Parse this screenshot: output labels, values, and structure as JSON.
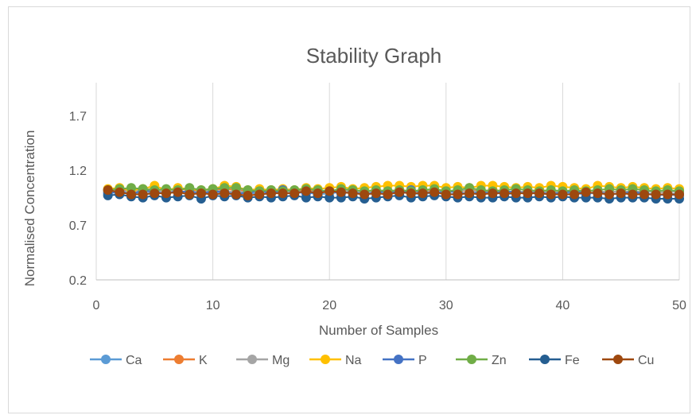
{
  "chart_data": {
    "type": "line",
    "title": "Stability Graph",
    "xlabel": "Number of Samples",
    "ylabel": "Normalised Concentration",
    "xlim": [
      0,
      50
    ],
    "ylim": [
      0.2,
      2.0
    ],
    "x_ticks": [
      "0",
      "10",
      "20",
      "30",
      "40",
      "50"
    ],
    "y_ticks": [
      "0.2",
      "0.7",
      "1.2",
      "1.7"
    ],
    "grid": "vertical",
    "legend": "bottom",
    "x": [
      1,
      2,
      3,
      4,
      5,
      6,
      7,
      8,
      9,
      10,
      11,
      12,
      13,
      14,
      15,
      16,
      17,
      18,
      19,
      20,
      21,
      22,
      23,
      24,
      25,
      26,
      27,
      28,
      29,
      30,
      31,
      32,
      33,
      34,
      35,
      36,
      37,
      38,
      39,
      40,
      41,
      42,
      43,
      44,
      45,
      46,
      47,
      48,
      49,
      50
    ],
    "series": [
      {
        "name": "Ca",
        "color": "#5B9BD5",
        "values": [
          1.0,
          0.99,
          1.0,
          0.98,
          1.0,
          0.99,
          1.01,
          1.0,
          0.98,
          1.0,
          1.0,
          0.99,
          1.0,
          0.98,
          0.99,
          1.0,
          0.99,
          1.0,
          0.98,
          0.99,
          1.0,
          1.0,
          0.98,
          0.99,
          1.0,
          1.0,
          0.99,
          0.98,
          1.0,
          0.99,
          0.98,
          1.0,
          0.99,
          1.0,
          0.98,
          0.99,
          1.0,
          0.98,
          0.99,
          1.0,
          0.99,
          0.98,
          1.0,
          0.99,
          0.98,
          1.0,
          0.99,
          0.98,
          0.98,
          0.99
        ]
      },
      {
        "name": "K",
        "color": "#ED7D31",
        "values": [
          1.02,
          1.03,
          1.01,
          1.02,
          1.03,
          1.01,
          1.03,
          1.02,
          1.01,
          1.02,
          1.03,
          1.02,
          1.01,
          1.0,
          1.01,
          1.02,
          1.01,
          1.02,
          1.01,
          1.0,
          1.02,
          1.01,
          1.0,
          1.02,
          1.01,
          1.02,
          1.01,
          1.0,
          1.02,
          1.01,
          1.0,
          1.02,
          1.01,
          1.02,
          1.01,
          1.0,
          1.01,
          1.02,
          1.01,
          1.0,
          1.01,
          1.02,
          1.01,
          1.0,
          1.01,
          1.0,
          1.01,
          1.0,
          1.0,
          1.01
        ]
      },
      {
        "name": "Mg",
        "color": "#A5A5A5",
        "values": [
          1.01,
          1.0,
          1.02,
          1.01,
          1.0,
          1.02,
          1.01,
          1.0,
          1.01,
          1.02,
          1.0,
          1.01,
          1.0,
          1.01,
          1.02,
          1.0,
          1.01,
          1.0,
          1.01,
          1.0,
          1.02,
          1.01,
          1.0,
          1.01,
          1.0,
          1.02,
          1.01,
          1.0,
          1.01,
          1.0,
          1.01,
          1.02,
          1.0,
          1.01,
          1.0,
          1.01,
          1.0,
          1.01,
          1.0,
          1.01,
          1.0,
          1.02,
          1.01,
          1.0,
          1.01,
          1.0,
          1.01,
          1.0,
          1.0,
          1.01
        ]
      },
      {
        "name": "Na",
        "color": "#FFC000",
        "values": [
          1.03,
          1.04,
          1.02,
          1.03,
          1.06,
          1.02,
          1.04,
          1.03,
          1.02,
          1.03,
          1.06,
          1.05,
          1.02,
          1.03,
          1.02,
          1.03,
          1.02,
          1.04,
          1.03,
          1.04,
          1.05,
          1.03,
          1.04,
          1.05,
          1.06,
          1.06,
          1.05,
          1.06,
          1.06,
          1.04,
          1.05,
          1.04,
          1.06,
          1.06,
          1.05,
          1.04,
          1.05,
          1.04,
          1.06,
          1.05,
          1.04,
          1.03,
          1.06,
          1.05,
          1.04,
          1.05,
          1.04,
          1.03,
          1.04,
          1.03
        ]
      },
      {
        "name": "P",
        "color": "#4472C4",
        "values": [
          0.99,
          1.01,
          0.98,
          1.02,
          1.0,
          0.99,
          1.01,
          1.0,
          0.99,
          1.01,
          1.0,
          0.98,
          1.0,
          1.01,
          0.99,
          1.02,
          1.01,
          0.99,
          1.0,
          1.01,
          0.99,
          1.0,
          0.98,
          1.0,
          1.01,
          0.99,
          1.02,
          1.0,
          0.99,
          1.01,
          1.0,
          0.98,
          1.0,
          0.99,
          1.01,
          1.0,
          0.99,
          1.0,
          0.98,
          1.0,
          1.01,
          0.99,
          1.0,
          0.98,
          0.99,
          1.0,
          0.99,
          0.97,
          0.98,
          0.97
        ]
      },
      {
        "name": "Zn",
        "color": "#70AD47",
        "values": [
          1.02,
          1.03,
          1.04,
          1.03,
          1.02,
          1.03,
          1.02,
          1.04,
          1.02,
          1.03,
          1.04,
          1.04,
          1.02,
          1.01,
          1.02,
          1.01,
          1.02,
          1.03,
          1.02,
          1.01,
          1.03,
          1.02,
          1.01,
          1.02,
          1.01,
          1.02,
          1.01,
          1.02,
          1.03,
          1.01,
          1.02,
          1.04,
          1.02,
          1.01,
          1.02,
          1.03,
          1.02,
          1.01,
          1.02,
          1.01,
          1.02,
          1.01,
          1.02,
          1.03,
          1.02,
          1.03,
          1.02,
          1.01,
          1.02,
          1.01
        ]
      },
      {
        "name": "Fe",
        "color": "#255E91",
        "values": [
          0.97,
          0.98,
          0.96,
          0.95,
          0.97,
          0.95,
          0.96,
          0.97,
          0.94,
          0.97,
          0.96,
          0.97,
          0.95,
          0.96,
          0.95,
          0.96,
          0.97,
          0.95,
          0.96,
          0.95,
          0.95,
          0.96,
          0.94,
          0.95,
          0.96,
          0.97,
          0.95,
          0.96,
          0.97,
          0.96,
          0.95,
          0.96,
          0.95,
          0.95,
          0.96,
          0.95,
          0.95,
          0.96,
          0.95,
          0.96,
          0.95,
          0.95,
          0.95,
          0.94,
          0.95,
          0.95,
          0.95,
          0.94,
          0.94,
          0.94
        ]
      },
      {
        "name": "Cu",
        "color": "#9E480E",
        "values": [
          1.02,
          1.0,
          0.98,
          0.98,
          0.99,
          0.99,
          1.0,
          0.98,
          0.99,
          0.98,
          0.99,
          0.98,
          0.97,
          0.98,
          0.99,
          0.99,
          0.99,
          1.01,
          0.99,
          1.01,
          1.0,
          0.99,
          0.98,
          0.99,
          0.98,
          1.0,
          0.99,
          0.99,
          1.0,
          0.98,
          0.98,
          0.99,
          0.98,
          0.99,
          0.99,
          0.99,
          0.99,
          0.99,
          0.98,
          0.98,
          0.98,
          1.0,
          0.99,
          0.98,
          0.99,
          0.98,
          0.98,
          0.98,
          0.98,
          0.98
        ]
      }
    ]
  }
}
